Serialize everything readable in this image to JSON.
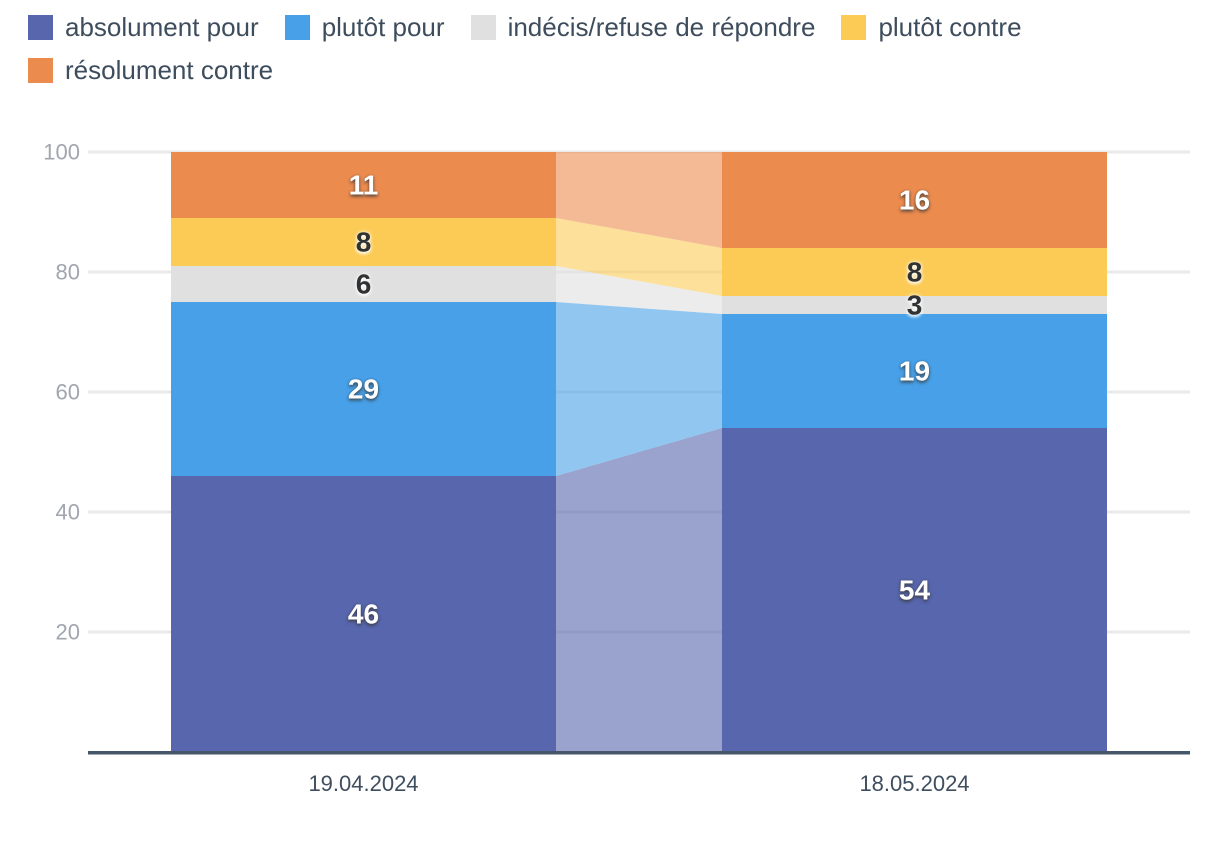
{
  "chart_data": {
    "type": "bar",
    "variant": "stacked-100-percent-with-flow-transitions",
    "title": "",
    "categories": [
      "19.04.2024",
      "18.05.2024"
    ],
    "series": [
      {
        "name": "absolument pour",
        "color": "#5766ad",
        "values": [
          46,
          54
        ],
        "label_color": "white"
      },
      {
        "name": "plutôt pour",
        "color": "#47a0e8",
        "values": [
          29,
          19
        ],
        "label_color": "white"
      },
      {
        "name": "indécis/refuse de répondre",
        "color": "#e0e0e0",
        "values": [
          6,
          3
        ],
        "label_color": "dark"
      },
      {
        "name": "plutôt contre",
        "color": "#fbcb55",
        "values": [
          8,
          8
        ],
        "label_color": "dark"
      },
      {
        "name": "résolument contre",
        "color": "#ec8b4e",
        "values": [
          11,
          16
        ],
        "label_color": "white"
      }
    ],
    "stack_order": "first series at bottom",
    "y_ticks": [
      20,
      40,
      60,
      80,
      100
    ],
    "ylim": [
      0,
      100
    ],
    "grid": "horizontal",
    "legend_position": "top-left"
  },
  "colors": {
    "gridline": "#eaeaea",
    "axis_line": "#45556a",
    "tick_label": "#a0a6b0",
    "x_label": "#3f4e5e",
    "legend_text": "#3e4d5d",
    "transition_band_opacity": "0.6"
  }
}
